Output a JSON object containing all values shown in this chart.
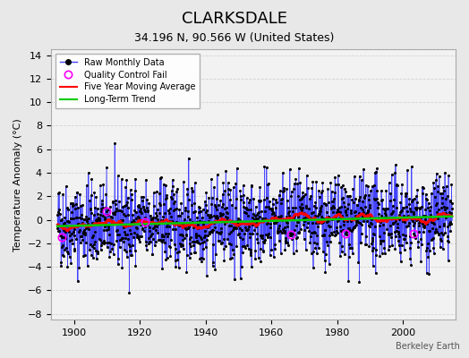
{
  "title": "CLARKSDALE",
  "subtitle": "34.196 N, 90.566 W (United States)",
  "ylabel": "Temperature Anomaly (°C)",
  "credit": "Berkeley Earth",
  "year_start": 1895,
  "year_end": 2014,
  "ylim": [
    -8.5,
    14.5
  ],
  "yticks": [
    -8,
    -6,
    -4,
    -2,
    0,
    2,
    4,
    6,
    8,
    10,
    12,
    14
  ],
  "xticks": [
    1900,
    1920,
    1940,
    1960,
    1980,
    2000
  ],
  "bg_color": "#e8e8e8",
  "plot_bg_color": "#f0f0f0",
  "raw_line_color": "#4444ff",
  "raw_marker_color": "#000000",
  "ma_color": "#ff0000",
  "trend_color": "#00cc00",
  "qc_color": "#ff00ff",
  "grid_color": "#cccccc"
}
